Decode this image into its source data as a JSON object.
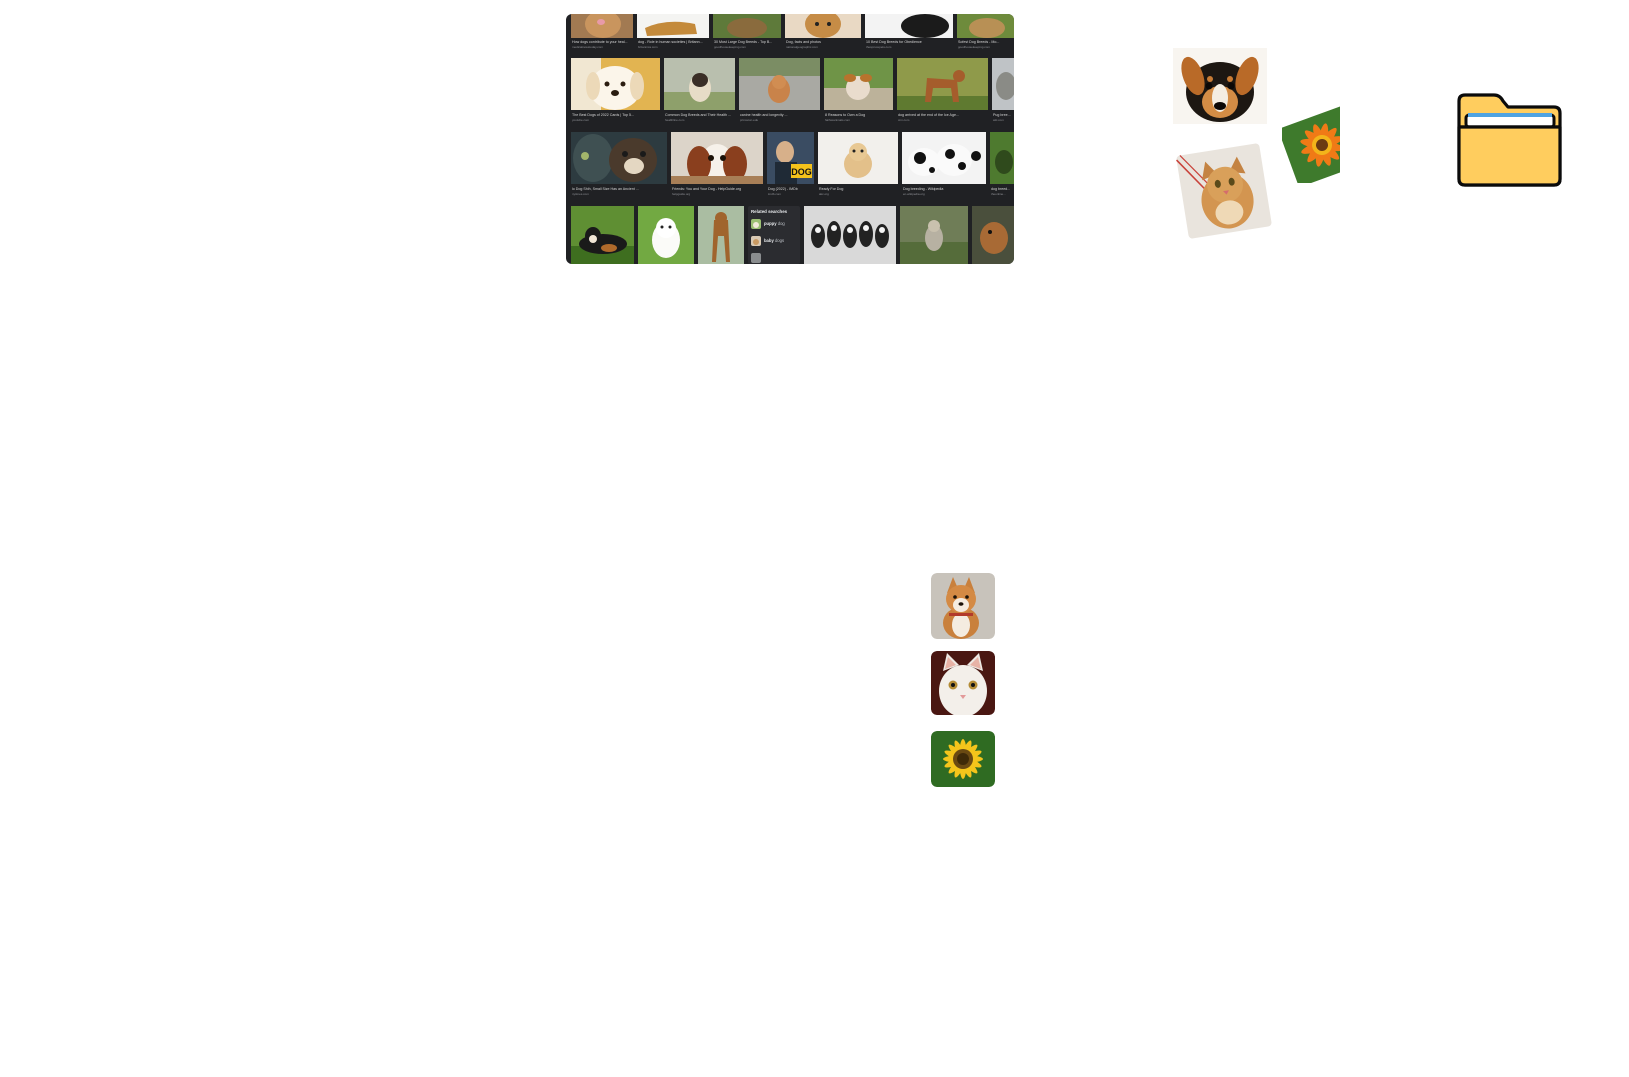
{
  "results": {
    "row1": [
      {
        "caption": "How dogs contribute to your heal...",
        "source": "medicalnewstoday.com"
      },
      {
        "caption": "dog - Role in human societies | Britann...",
        "source": "britannica.com"
      },
      {
        "caption": "30 Most Large Dog Breeds - Top B...",
        "source": "goodhousekeeping.com"
      },
      {
        "caption": "Dog, facts and photos",
        "source": "nationalgeographic.com"
      },
      {
        "caption": "10 Best Dog Breeds for Obedience",
        "source": "thesprucepets.com"
      },
      {
        "caption": "Sofest Dog Breeds - Mo...",
        "source": "goodhousekeeping.com"
      }
    ],
    "row2": [
      {
        "caption": "The Best Dogs of 2022 Cards | Top 5...",
        "source": "youtube.com"
      },
      {
        "caption": "Common Dog Breeds and Their Health ...",
        "source": "healthline.com"
      },
      {
        "caption": "canine health and longevity ...",
        "source": "princeton.edu"
      },
      {
        "caption": "8 Reasons to Own a Dog",
        "source": "fairfaxanimals.com"
      },
      {
        "caption": "dog arrived at the end of the Ice Age...",
        "source": "cnn.com"
      },
      {
        "caption": "Pug bree...",
        "source": "wki.com"
      }
    ],
    "row3": [
      {
        "caption": "lo Dog Shih, Small Size Has an Ancient ...",
        "source": "nytimes.com"
      },
      {
        "caption": "Friends: You and Your Dog - HelpGuide.org",
        "source": "helpguide.org"
      },
      {
        "caption": "Dog (2022) - IMDb",
        "source": "imdb.com"
      },
      {
        "caption": "Ready For Dog",
        "source": "akc.org"
      },
      {
        "caption": "Dog breeding - Wikipedia",
        "source": "en.wikipedia.org"
      },
      {
        "caption": "dog breed...",
        "source": "theonline..."
      }
    ],
    "movie_text": "DOG",
    "related": {
      "title": "Related searches",
      "items": [
        {
          "bold": "puppy",
          "rest": "dog"
        },
        {
          "bold": "baby",
          "rest": "dogs"
        }
      ]
    }
  },
  "colors": {
    "panel_bg": "#202124",
    "folder_fill": "#ffcd5e",
    "folder_stroke": "#0b0b0b"
  },
  "icons": {
    "folder": "folder-icon"
  }
}
